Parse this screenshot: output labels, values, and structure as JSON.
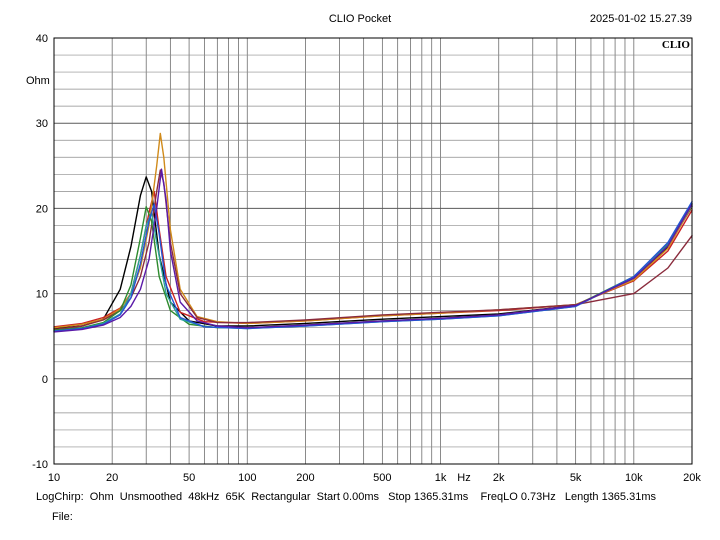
{
  "header": {
    "title": "CLIO Pocket",
    "timestamp": "2025-01-02 15.27.39",
    "logo": "CLIO"
  },
  "footer": {
    "info": "LogChirp:  Ohm  Unsmoothed  48kHz  65K  Rectangular  Start 0.00ms   Stop 1365.31ms    FreqLO 0.73Hz   Length 1365.31ms",
    "file_label": "File:"
  },
  "chart_data": {
    "type": "line",
    "title": "CLIO Pocket",
    "xlabel": "Hz",
    "ylabel": "Ohm",
    "xscale": "log",
    "xlim": [
      10,
      20000
    ],
    "ylim": [
      -10,
      40
    ],
    "yticks": [
      40,
      30,
      20,
      10,
      0,
      -10
    ],
    "xtick_labels": [
      {
        "value": 10,
        "label": "10"
      },
      {
        "value": 20,
        "label": "20"
      },
      {
        "value": 50,
        "label": "50"
      },
      {
        "value": 100,
        "label": "100"
      },
      {
        "value": 200,
        "label": "200"
      },
      {
        "value": 500,
        "label": "500"
      },
      {
        "value": 1000,
        "label": "1k"
      },
      {
        "value": 2000,
        "label": "2k"
      },
      {
        "value": 5000,
        "label": "5k"
      },
      {
        "value": 10000,
        "label": "10k"
      },
      {
        "value": 20000,
        "label": "20k"
      }
    ],
    "grid": true,
    "series": [
      {
        "name": "black",
        "color": "#000000",
        "points": [
          [
            10,
            5.9
          ],
          [
            14,
            6.2
          ],
          [
            18,
            7.0
          ],
          [
            22,
            10.5
          ],
          [
            25,
            15.5
          ],
          [
            28,
            21.5
          ],
          [
            30,
            23.7
          ],
          [
            32,
            22.0
          ],
          [
            35,
            14.5
          ],
          [
            40,
            9.0
          ],
          [
            50,
            6.8
          ],
          [
            70,
            6.2
          ],
          [
            100,
            6.2
          ],
          [
            200,
            6.5
          ],
          [
            500,
            7.0
          ],
          [
            1000,
            7.3
          ],
          [
            2000,
            7.6
          ],
          [
            5000,
            8.6
          ],
          [
            10000,
            11.8
          ],
          [
            15000,
            15.5
          ],
          [
            20000,
            20.2
          ]
        ]
      },
      {
        "name": "red",
        "color": "#cc2222",
        "points": [
          [
            10,
            6.1
          ],
          [
            14,
            6.5
          ],
          [
            18,
            7.2
          ],
          [
            22,
            8.3
          ],
          [
            25,
            10.0
          ],
          [
            28,
            14.5
          ],
          [
            31,
            19.5
          ],
          [
            33,
            22.0
          ],
          [
            35,
            17.5
          ],
          [
            38,
            12.0
          ],
          [
            45,
            7.8
          ],
          [
            60,
            6.7
          ],
          [
            100,
            6.5
          ],
          [
            200,
            6.8
          ],
          [
            500,
            7.4
          ],
          [
            1000,
            7.7
          ],
          [
            2000,
            8.0
          ],
          [
            5000,
            8.7
          ],
          [
            10000,
            11.5
          ],
          [
            15000,
            15.0
          ],
          [
            20000,
            19.8
          ]
        ]
      },
      {
        "name": "orange",
        "color": "#d08a1a",
        "points": [
          [
            10,
            6.0
          ],
          [
            14,
            6.4
          ],
          [
            18,
            7.0
          ],
          [
            22,
            8.2
          ],
          [
            25,
            10.0
          ],
          [
            28,
            13.0
          ],
          [
            31,
            18.0
          ],
          [
            34,
            25.0
          ],
          [
            35.5,
            28.8
          ],
          [
            37,
            26.0
          ],
          [
            40,
            17.5
          ],
          [
            45,
            10.5
          ],
          [
            55,
            7.3
          ],
          [
            70,
            6.7
          ],
          [
            100,
            6.5
          ],
          [
            200,
            6.8
          ],
          [
            500,
            7.4
          ],
          [
            1000,
            7.7
          ],
          [
            2000,
            8.1
          ],
          [
            5000,
            8.7
          ],
          [
            10000,
            11.6
          ],
          [
            15000,
            15.3
          ],
          [
            20000,
            20.3
          ]
        ]
      },
      {
        "name": "maroon",
        "color": "#8a2b3c",
        "points": [
          [
            10,
            5.8
          ],
          [
            14,
            6.2
          ],
          [
            18,
            6.9
          ],
          [
            22,
            8.0
          ],
          [
            25,
            9.5
          ],
          [
            28,
            12.0
          ],
          [
            31,
            16.0
          ],
          [
            34,
            22.0
          ],
          [
            35.5,
            24.5
          ],
          [
            37,
            23.0
          ],
          [
            40,
            16.0
          ],
          [
            45,
            10.0
          ],
          [
            55,
            7.2
          ],
          [
            70,
            6.6
          ],
          [
            100,
            6.6
          ],
          [
            200,
            6.9
          ],
          [
            500,
            7.5
          ],
          [
            1000,
            7.8
          ],
          [
            2000,
            8.1
          ],
          [
            5000,
            8.7
          ],
          [
            10000,
            10.0
          ],
          [
            15000,
            13.0
          ],
          [
            20000,
            16.8
          ]
        ]
      },
      {
        "name": "green",
        "color": "#2e8b2e",
        "points": [
          [
            10,
            5.7
          ],
          [
            14,
            6.0
          ],
          [
            18,
            6.6
          ],
          [
            22,
            8.0
          ],
          [
            25,
            11.0
          ],
          [
            28,
            16.5
          ],
          [
            30,
            20.2
          ],
          [
            32,
            18.5
          ],
          [
            35,
            12.0
          ],
          [
            40,
            8.0
          ],
          [
            50,
            6.4
          ],
          [
            70,
            6.0
          ],
          [
            100,
            6.0
          ],
          [
            200,
            6.3
          ],
          [
            500,
            6.8
          ],
          [
            1000,
            7.1
          ],
          [
            2000,
            7.5
          ],
          [
            5000,
            8.6
          ],
          [
            10000,
            12.0
          ],
          [
            15000,
            15.8
          ],
          [
            20000,
            20.6
          ]
        ]
      },
      {
        "name": "teal",
        "color": "#2aa39a",
        "points": [
          [
            10,
            5.6
          ],
          [
            14,
            5.9
          ],
          [
            18,
            6.5
          ],
          [
            22,
            7.6
          ],
          [
            25,
            10.0
          ],
          [
            28,
            14.5
          ],
          [
            30,
            18.0
          ],
          [
            32,
            19.5
          ],
          [
            34,
            16.0
          ],
          [
            38,
            10.0
          ],
          [
            45,
            7.0
          ],
          [
            60,
            6.1
          ],
          [
            100,
            5.9
          ],
          [
            200,
            6.2
          ],
          [
            500,
            6.7
          ],
          [
            1000,
            7.0
          ],
          [
            2000,
            7.4
          ],
          [
            5000,
            8.5
          ],
          [
            10000,
            11.9
          ],
          [
            15000,
            15.7
          ],
          [
            20000,
            20.4
          ]
        ]
      },
      {
        "name": "blue",
        "color": "#2455d6",
        "points": [
          [
            10,
            5.6
          ],
          [
            14,
            5.9
          ],
          [
            18,
            6.4
          ],
          [
            22,
            7.5
          ],
          [
            25,
            9.5
          ],
          [
            28,
            13.5
          ],
          [
            31,
            18.5
          ],
          [
            33,
            20.5
          ],
          [
            35,
            17.0
          ],
          [
            38,
            11.0
          ],
          [
            45,
            7.2
          ],
          [
            60,
            6.1
          ],
          [
            100,
            5.9
          ],
          [
            200,
            6.2
          ],
          [
            500,
            6.7
          ],
          [
            1000,
            7.0
          ],
          [
            2000,
            7.4
          ],
          [
            5000,
            8.5
          ],
          [
            10000,
            12.0
          ],
          [
            15000,
            16.0
          ],
          [
            20000,
            20.8
          ]
        ]
      },
      {
        "name": "violet",
        "color": "#5a1aa8",
        "points": [
          [
            10,
            5.5
          ],
          [
            14,
            5.8
          ],
          [
            18,
            6.3
          ],
          [
            22,
            7.2
          ],
          [
            25,
            8.5
          ],
          [
            28,
            10.5
          ],
          [
            31,
            14.0
          ],
          [
            34,
            20.0
          ],
          [
            36,
            24.6
          ],
          [
            38,
            21.0
          ],
          [
            40,
            15.0
          ],
          [
            45,
            9.0
          ],
          [
            55,
            6.8
          ],
          [
            70,
            6.2
          ],
          [
            100,
            6.0
          ],
          [
            200,
            6.3
          ],
          [
            500,
            6.8
          ],
          [
            1000,
            7.1
          ],
          [
            2000,
            7.5
          ],
          [
            5000,
            8.6
          ],
          [
            10000,
            11.8
          ],
          [
            15000,
            15.6
          ],
          [
            20000,
            20.5
          ]
        ]
      }
    ]
  }
}
